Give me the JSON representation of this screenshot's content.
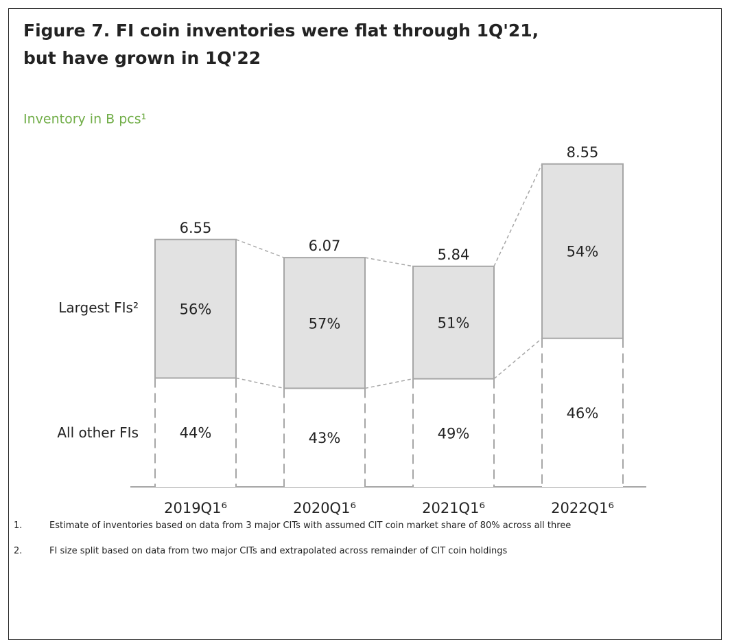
{
  "chart_data": {
    "type": "stacked_percent_bar",
    "title": [
      "Figure 7. FI coin inventories were flat through 1Q'21,",
      "but have grown in 1Q'22"
    ],
    "subtitle": "Inventory in B pcs¹",
    "categories": [
      "2019Q1⁶",
      "2020Q1⁶",
      "2021Q1⁶",
      "2022Q1⁶"
    ],
    "totals": [
      6.55,
      6.07,
      5.84,
      8.55
    ],
    "series": [
      {
        "name": "Largest FIs²",
        "color": "#e2e2e2",
        "values": [
          56,
          57,
          51,
          54
        ],
        "value_labels": [
          "56%",
          "57%",
          "51%",
          "54%"
        ]
      },
      {
        "name": "All other FIs",
        "color": "#ffffff",
        "values": [
          44,
          43,
          49,
          46
        ],
        "value_labels": [
          "44%",
          "43%",
          "49%",
          "46%"
        ]
      }
    ],
    "footnotes": [
      {
        "number": "1.",
        "text": "Estimate of inventories based on data from 3 major CITs with assumed CIT coin market share of 80% across all three"
      },
      {
        "number": "2.",
        "text": "FI size split based on data from two major CITs and extrapolated across remainder of CIT coin holdings"
      }
    ]
  }
}
